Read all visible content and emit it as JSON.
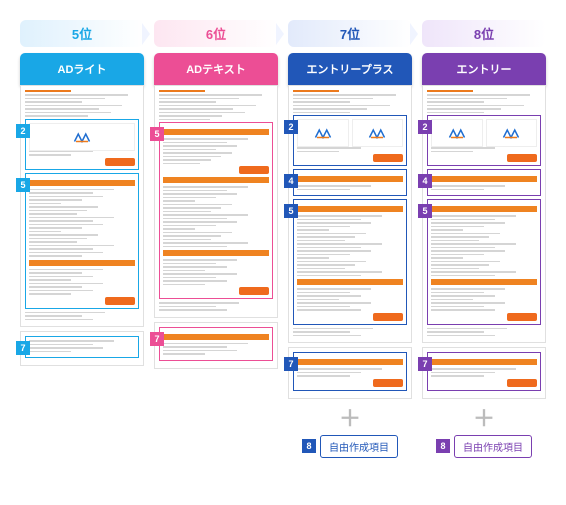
{
  "columns": [
    {
      "rank": "5位",
      "plan": "ADライト",
      "color": "#19a7e6",
      "rank_bg": "linear-gradient(to right,#dff1fd,#ffffff)",
      "regions": [
        2,
        5,
        7
      ],
      "has_free": false,
      "layout": "A"
    },
    {
      "rank": "6位",
      "plan": "ADテキスト",
      "color": "#ec4e95",
      "rank_bg": "linear-gradient(to right,#fde6f1,#ffffff)",
      "regions": [
        5,
        7
      ],
      "has_free": false,
      "layout": "B"
    },
    {
      "rank": "7位",
      "plan": "エントリープラス",
      "color": "#2157b8",
      "rank_bg": "linear-gradient(to right,#e2eafb,#ffffff)",
      "regions": [
        2,
        4,
        5,
        7
      ],
      "has_free": true,
      "layout": "C"
    },
    {
      "rank": "8位",
      "plan": "エントリー",
      "color": "#7a3fb0",
      "rank_bg": "linear-gradient(to right,#efe5fa,#ffffff)",
      "regions": [
        2,
        4,
        5,
        7
      ],
      "has_free": true,
      "layout": "C"
    }
  ],
  "free_label": "自由作成項目",
  "free_num": "8",
  "logo_color": "#1f6dd0",
  "orange": "#ef8321",
  "grey": "#cfcfcf"
}
